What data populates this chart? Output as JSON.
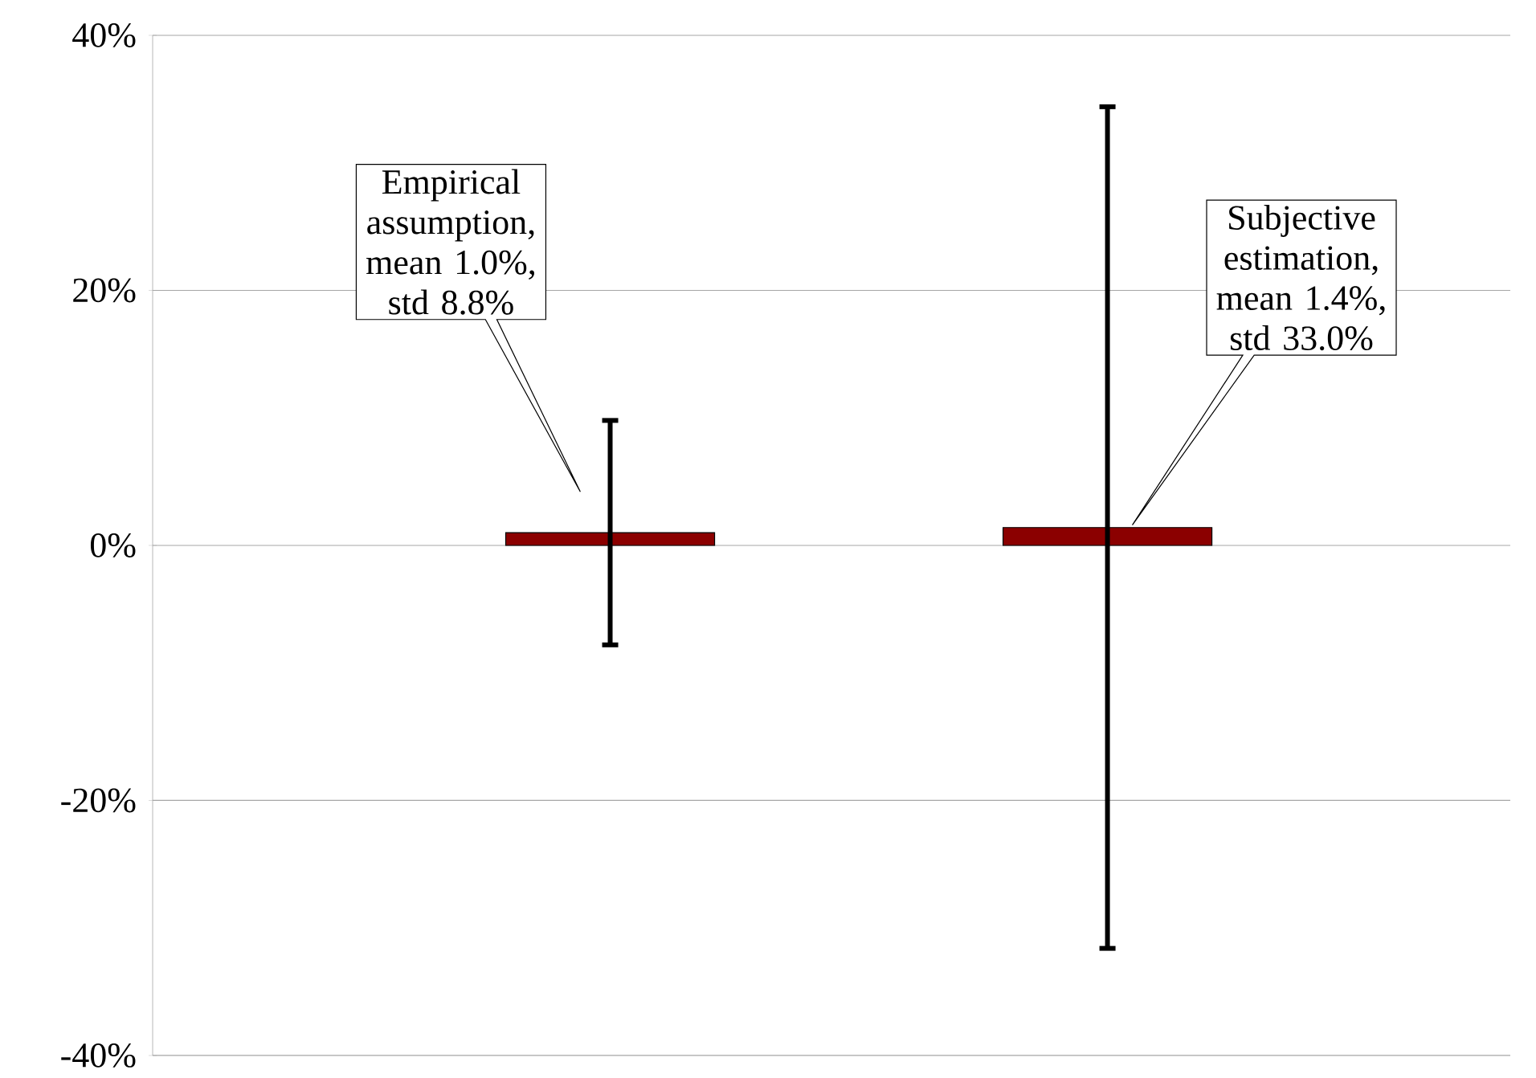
{
  "chart_data": {
    "type": "bar",
    "categories": [
      null,
      null
    ],
    "values": [
      1.0,
      1.4
    ],
    "errors": [
      8.8,
      33.0
    ],
    "colors": [
      "#8b0000",
      "#8b0000"
    ],
    "ylim": [
      -40,
      40
    ],
    "yticks": [
      {
        "value": -40,
        "label": "-40%"
      },
      {
        "value": -20,
        "label": "-20%"
      },
      {
        "value": 0,
        "label": "0%"
      },
      {
        "value": 20,
        "label": "20%"
      },
      {
        "value": 40,
        "label": "40%"
      }
    ],
    "grid": "y",
    "annotations": [
      "Empirical assumption, mean 1.0%, std 8.8%",
      "Subjective estimation, mean 1.4%, std 33.0%"
    ]
  }
}
